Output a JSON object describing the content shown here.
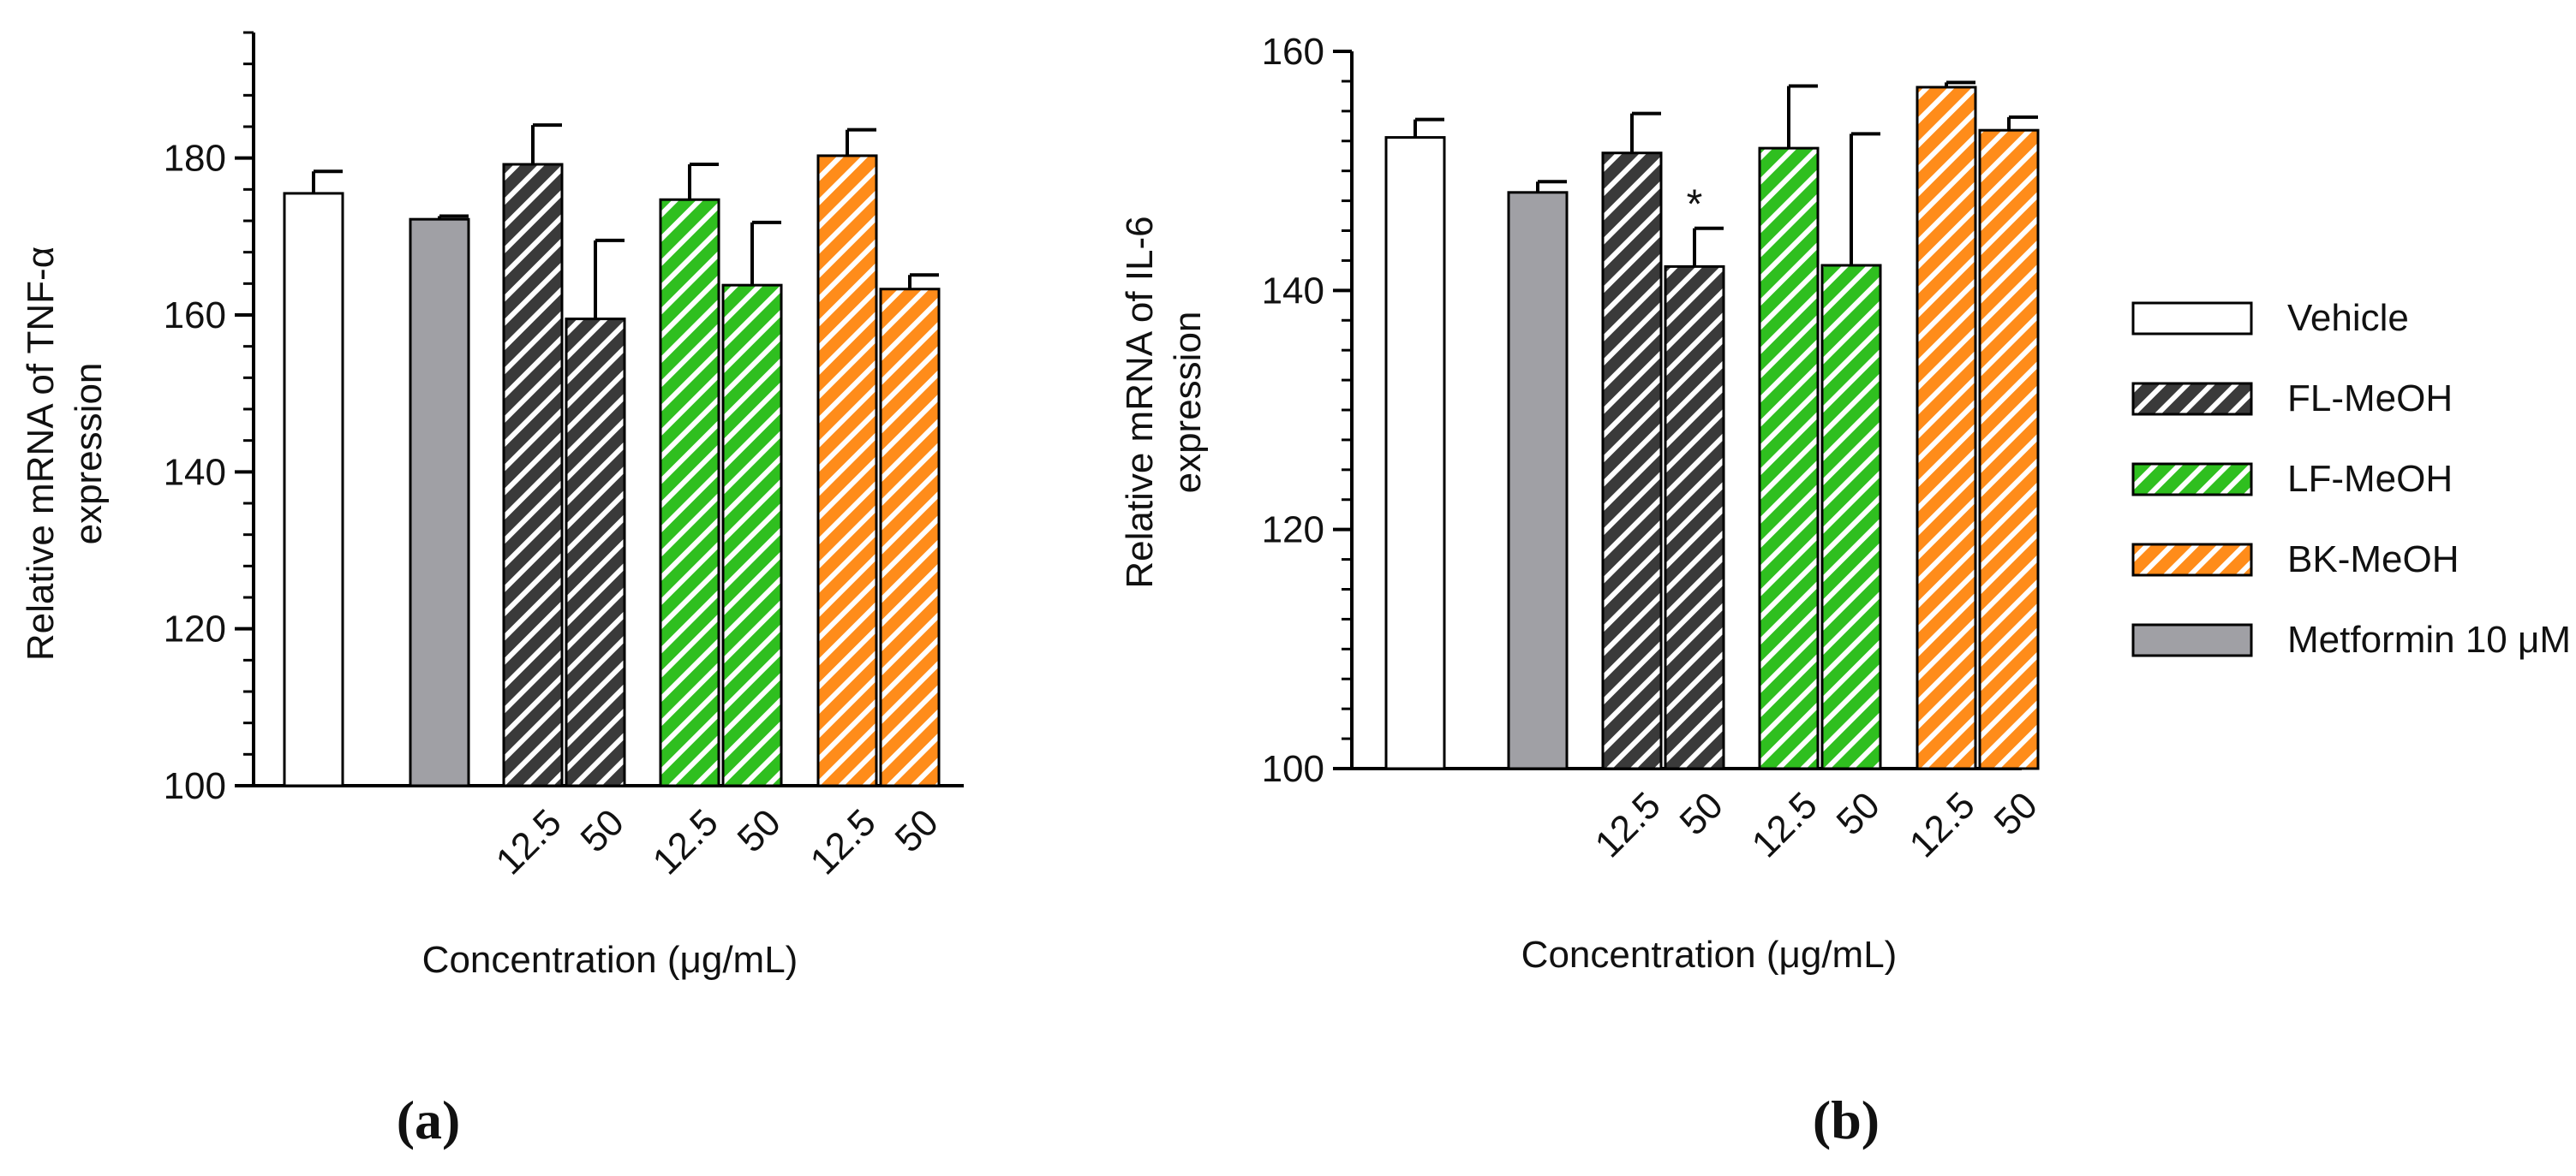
{
  "colors": {
    "vehicle": "#ffffff",
    "fl_meoh": "#3a3a3a",
    "lf_meoh": "#2fbf1f",
    "bk_meoh": "#ff8c1a",
    "metformin": "#a0a0a5",
    "axis": "#000000"
  },
  "legend": {
    "items": [
      {
        "label": "Vehicle",
        "key": "vehicle",
        "pattern": "solid"
      },
      {
        "label": "FL-MeOH",
        "key": "fl_meoh",
        "pattern": "hatch"
      },
      {
        "label": "LF-MeOH",
        "key": "lf_meoh",
        "pattern": "hatch"
      },
      {
        "label": "BK-MeOH",
        "key": "bk_meoh",
        "pattern": "hatch"
      },
      {
        "label": "Metformin 10 μM",
        "key": "metformin",
        "pattern": "solid"
      }
    ]
  },
  "chart_data": [
    {
      "panel": "(a)",
      "type": "bar",
      "ylabel_line1": "Relative mRNA of TNF-α",
      "ylabel_line2": "expression",
      "xlabel": "Concentration (μg/mL)",
      "ylim": [
        100,
        196
      ],
      "yticks": [
        100,
        120,
        140,
        160,
        180
      ],
      "minor_tick_step": 4,
      "bars": [
        {
          "group": "Vehicle",
          "key": "vehicle",
          "pattern": "solid",
          "tick_label": "",
          "value": 175.5,
          "error": 2.8
        },
        {
          "group": "Metformin 10 μM",
          "key": "metformin",
          "pattern": "solid",
          "tick_label": "",
          "value": 172.2,
          "error": 0.4
        },
        {
          "group": "FL-MeOH",
          "key": "fl_meoh",
          "pattern": "hatch",
          "tick_label": "12.5",
          "value": 179.2,
          "error": 5.0
        },
        {
          "group": "FL-MeOH",
          "key": "fl_meoh",
          "pattern": "hatch",
          "tick_label": "50",
          "value": 159.5,
          "error": 10.0
        },
        {
          "group": "LF-MeOH",
          "key": "lf_meoh",
          "pattern": "hatch",
          "tick_label": "12.5",
          "value": 174.7,
          "error": 4.5
        },
        {
          "group": "LF-MeOH",
          "key": "lf_meoh",
          "pattern": "hatch",
          "tick_label": "50",
          "value": 163.8,
          "error": 8.0
        },
        {
          "group": "BK-MeOH",
          "key": "bk_meoh",
          "pattern": "hatch",
          "tick_label": "12.5",
          "value": 180.3,
          "error": 3.3
        },
        {
          "group": "BK-MeOH",
          "key": "bk_meoh",
          "pattern": "hatch",
          "tick_label": "50",
          "value": 163.3,
          "error": 1.8
        }
      ],
      "annotations": []
    },
    {
      "panel": "(b)",
      "type": "bar",
      "ylabel_line1": "Relative mRNA of IL-6",
      "ylabel_line2": "expression",
      "xlabel": "Concentration (μg/mL)",
      "ylim": [
        100,
        160
      ],
      "yticks": [
        100,
        120,
        140,
        160
      ],
      "minor_tick_step": 2.5,
      "bars": [
        {
          "group": "Vehicle",
          "key": "vehicle",
          "pattern": "solid",
          "tick_label": "",
          "value": 152.8,
          "error": 1.5
        },
        {
          "group": "Metformin 10 μM",
          "key": "metformin",
          "pattern": "solid",
          "tick_label": "",
          "value": 148.2,
          "error": 0.9
        },
        {
          "group": "FL-MeOH",
          "key": "fl_meoh",
          "pattern": "hatch",
          "tick_label": "12.5",
          "value": 151.5,
          "error": 3.3
        },
        {
          "group": "FL-MeOH",
          "key": "fl_meoh",
          "pattern": "hatch",
          "tick_label": "50",
          "value": 142.0,
          "error": 3.2
        },
        {
          "group": "LF-MeOH",
          "key": "lf_meoh",
          "pattern": "hatch",
          "tick_label": "12.5",
          "value": 151.9,
          "error": 5.2
        },
        {
          "group": "LF-MeOH",
          "key": "lf_meoh",
          "pattern": "hatch",
          "tick_label": "50",
          "value": 142.1,
          "error": 11.0
        },
        {
          "group": "BK-MeOH",
          "key": "bk_meoh",
          "pattern": "hatch",
          "tick_label": "12.5",
          "value": 157.0,
          "error": 0.4
        },
        {
          "group": "BK-MeOH",
          "key": "bk_meoh",
          "pattern": "hatch",
          "tick_label": "50",
          "value": 153.4,
          "error": 1.1
        }
      ],
      "annotations": [
        {
          "bar_index": 3,
          "text": "*"
        }
      ]
    }
  ]
}
